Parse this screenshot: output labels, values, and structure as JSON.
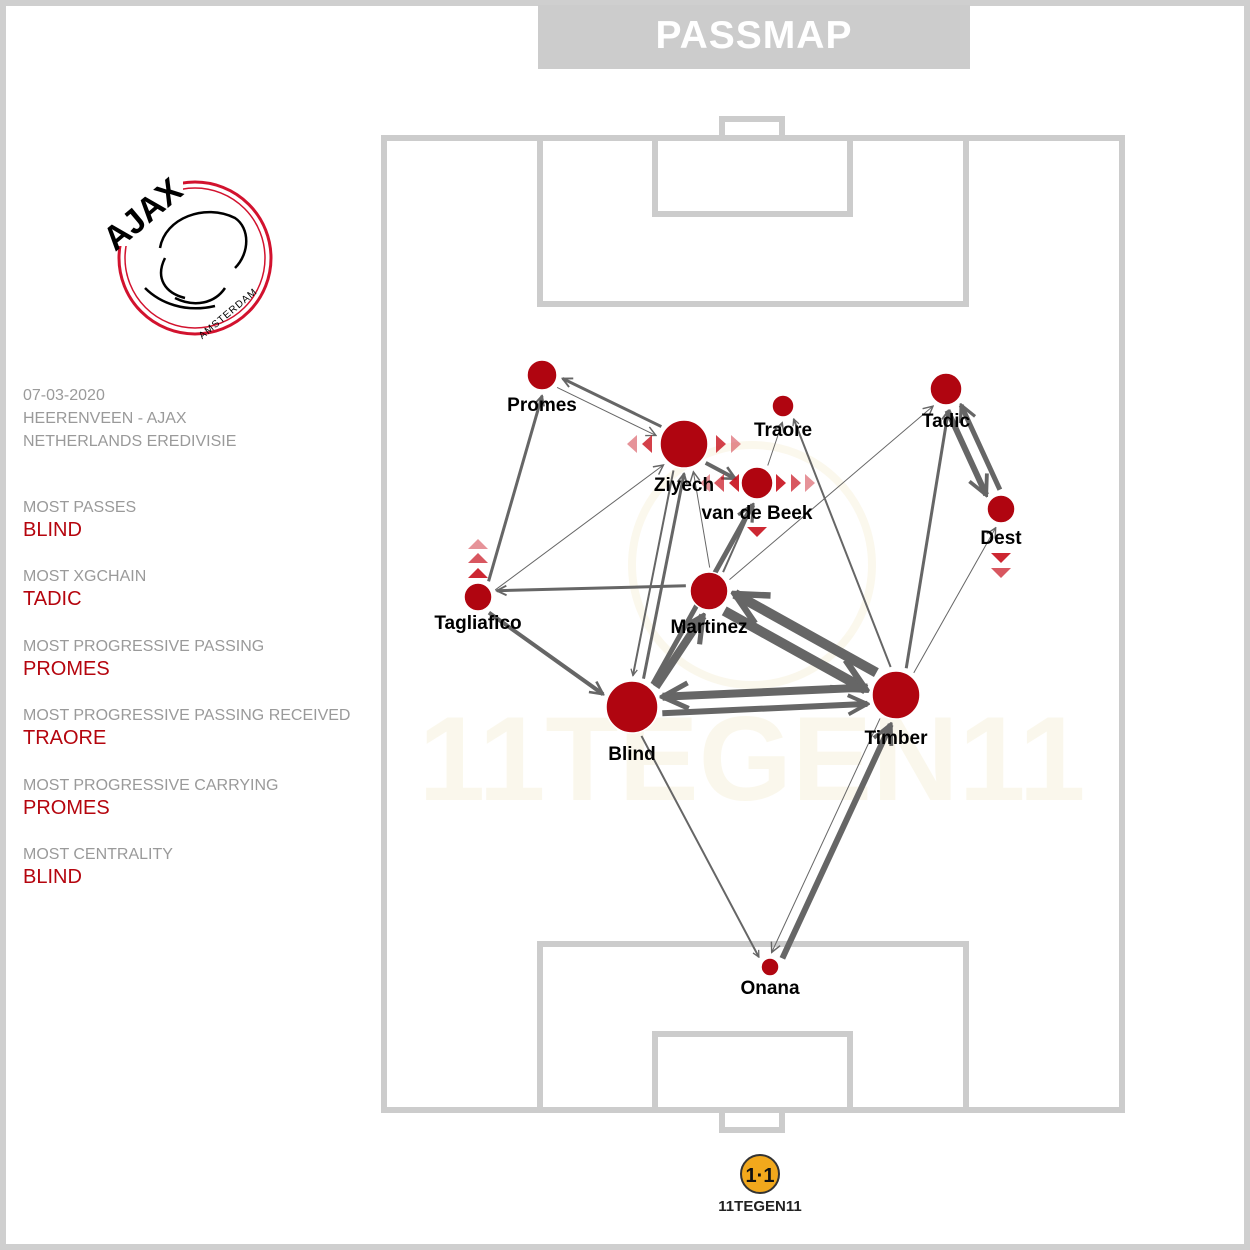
{
  "title": "PASSMAP",
  "match": {
    "date": "07-03-2020",
    "fixture": "HEERENVEEN - AJAX",
    "competition": "NETHERLANDS EREDIVISIE"
  },
  "stats": [
    {
      "label": "MOST PASSES",
      "value": "BLIND"
    },
    {
      "label": "MOST XGCHAIN",
      "value": "TADIC"
    },
    {
      "label": "MOST PROGRESSIVE PASSING",
      "value": "PROMES"
    },
    {
      "label": "MOST PROGRESSIVE PASSING RECEIVED",
      "value": "TRAORE"
    },
    {
      "label": "MOST PROGRESSIVE CARRYING",
      "value": "PROMES"
    },
    {
      "label": "MOST CENTRALITY",
      "value": "BLIND"
    }
  ],
  "players": {
    "promes": "Promes",
    "ziyech": "Ziyech",
    "traore": "Traore",
    "vandebeek": "van de Beek",
    "tadic": "Tadic",
    "dest": "Dest",
    "tagliafico": "Tagliafico",
    "martinez": "Martinez",
    "blind": "Blind",
    "timber": "Timber",
    "onana": "Onana"
  },
  "logo": {
    "club_text": "AJAX",
    "city_text": "AMSTERDAM"
  },
  "brand": {
    "text": "11TEGEN11"
  },
  "colors": {
    "node": "#b00510",
    "pass": "#666666",
    "pitch": "#cccccc",
    "accent": "#b5050e"
  }
}
